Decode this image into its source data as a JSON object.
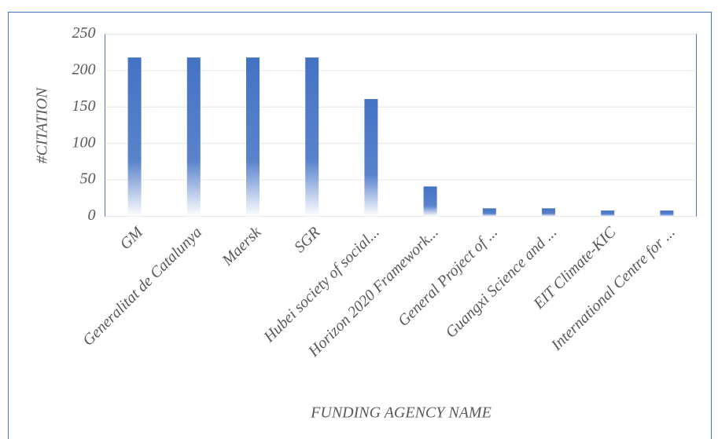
{
  "chart_data": {
    "type": "bar",
    "categories": [
      "GM",
      "Generalitat de Catalunya",
      "Maersk",
      "SGR",
      "Hubei society of social...",
      "Horizon 2020 Framework...",
      "General Project of ...",
      "Guangxi Science and ...",
      "EIT Climate-KIC",
      "International Centre for ..."
    ],
    "values": [
      218,
      218,
      218,
      218,
      161,
      41,
      11,
      11,
      8,
      8
    ],
    "color": "#4472c4",
    "ylim": [
      0,
      250
    ],
    "yticks": [
      0,
      50,
      100,
      150,
      200,
      250
    ],
    "grid": true,
    "x_label": "FUNDING AGENCY NAME",
    "y_label": "#CITATION"
  }
}
